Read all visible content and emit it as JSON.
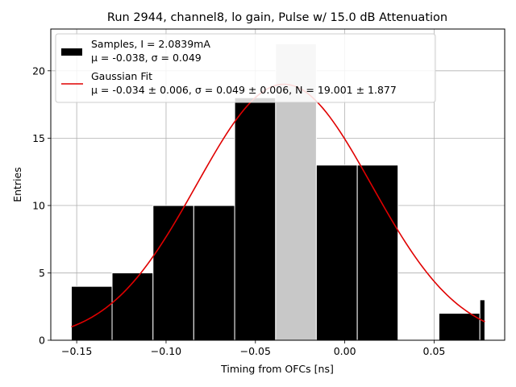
{
  "chart_data": {
    "type": "bar",
    "title": "Run 2944, channel8, lo gain, Pulse w/ 15.0 dB Attenuation",
    "xlabel": "Timing from OFCs [ns]",
    "ylabel": "Entries",
    "xlim": [
      -0.1645,
      0.0895
    ],
    "ylim": [
      0,
      23.1
    ],
    "x_ticks": [
      -0.15,
      -0.1,
      -0.05,
      0.0,
      0.05
    ],
    "x_tick_labels": [
      "−0.15",
      "−0.10",
      "−0.05",
      "0.00",
      "0.05"
    ],
    "y_ticks": [
      0,
      5,
      10,
      15,
      20
    ],
    "y_tick_labels": [
      "0",
      "5",
      "10",
      "15",
      "20"
    ],
    "grid": true,
    "bins": [
      {
        "x0": -0.153,
        "x1": -0.1302,
        "value": 4,
        "color": "#000000"
      },
      {
        "x0": -0.1302,
        "x1": -0.1073,
        "value": 5,
        "color": "#000000"
      },
      {
        "x0": -0.1073,
        "x1": -0.0845,
        "value": 10,
        "color": "#000000"
      },
      {
        "x0": -0.0845,
        "x1": -0.0616,
        "value": 10,
        "color": "#000000"
      },
      {
        "x0": -0.0616,
        "x1": -0.0387,
        "value": 18,
        "color": "#000000"
      },
      {
        "x0": -0.0387,
        "x1": -0.0159,
        "value": 22,
        "color": "#c8c8c8"
      },
      {
        "x0": -0.0159,
        "x1": 0.007,
        "value": 13,
        "color": "#000000"
      },
      {
        "x0": 0.007,
        "x1": 0.0298,
        "value": 13,
        "color": "#000000"
      },
      {
        "x0": 0.0298,
        "x1": 0.0527,
        "value": 0,
        "color": "#000000"
      },
      {
        "x0": 0.0527,
        "x1": 0.0756,
        "value": 2,
        "color": "#000000"
      },
      {
        "x0": 0.0756,
        "x1": 0.0784,
        "value": 3,
        "color": "#000000"
      }
    ],
    "series": [
      {
        "name": "Samples, I = 2.0839mA",
        "stats": "μ = -0.038, σ = 0.049",
        "kind": "histogram",
        "color": "#000000"
      },
      {
        "name": "Gaussian Fit",
        "stats": "μ = -0.034 ± 0.006, σ = 0.049 ± 0.006, N = 19.001 ± 1.877",
        "kind": "line",
        "color": "#e00000",
        "mu": -0.034,
        "sigma": 0.049,
        "amplitude": 19.001,
        "x_range": [
          -0.153,
          0.0784
        ]
      }
    ],
    "legend_position": "top-left"
  }
}
